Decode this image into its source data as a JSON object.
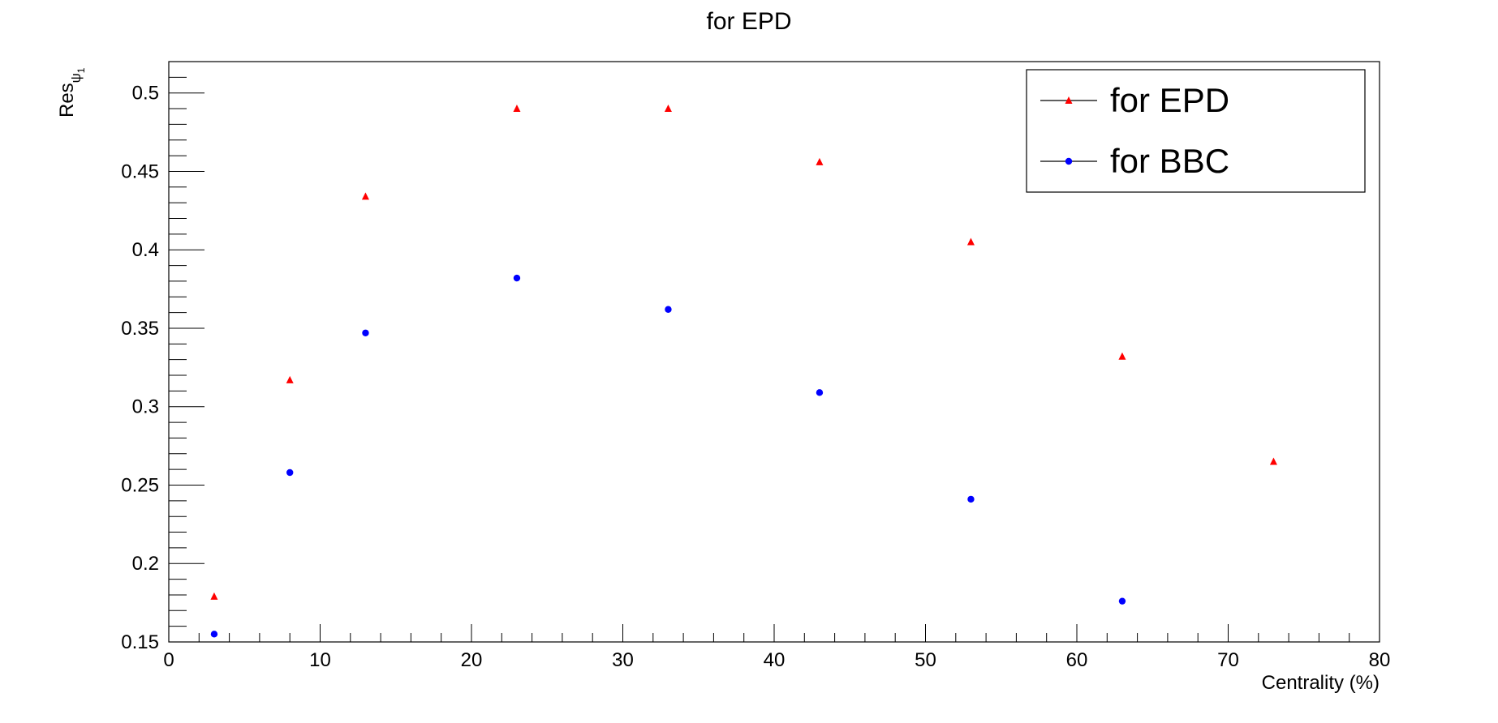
{
  "chart_data": {
    "type": "scatter",
    "title": "for EPD",
    "xlabel": "Centrality (%)",
    "ylabel": {
      "main": "Res",
      "sub": "ψ",
      "subsub": "1"
    },
    "xlim": [
      0,
      80
    ],
    "ylim": [
      0.15,
      0.52
    ],
    "x_ticks": [
      0,
      10,
      20,
      30,
      40,
      50,
      60,
      70,
      80
    ],
    "x_tick_labels": [
      "0",
      "10",
      "20",
      "30",
      "40",
      "50",
      "60",
      "70",
      "80"
    ],
    "y_ticks": [
      0.15,
      0.2,
      0.25,
      0.3,
      0.35,
      0.4,
      0.45,
      0.5
    ],
    "y_tick_labels": [
      "0.15",
      "0.2",
      "0.25",
      "0.3",
      "0.35",
      "0.4",
      "0.45",
      "0.5"
    ],
    "grid": false,
    "legend_position": "top-right",
    "series": [
      {
        "name": "for EPD",
        "marker": "triangle",
        "color": "#ff0000",
        "x": [
          3,
          8,
          13,
          23,
          33,
          43,
          53,
          63,
          73
        ],
        "y": [
          0.179,
          0.317,
          0.434,
          0.49,
          0.49,
          0.456,
          0.405,
          0.332,
          0.265
        ]
      },
      {
        "name": "for BBC",
        "marker": "circle",
        "color": "#0000ff",
        "x": [
          3,
          8,
          13,
          23,
          33,
          43,
          53,
          63
        ],
        "y": [
          0.155,
          0.258,
          0.347,
          0.382,
          0.362,
          0.309,
          0.241,
          0.176
        ]
      }
    ]
  }
}
